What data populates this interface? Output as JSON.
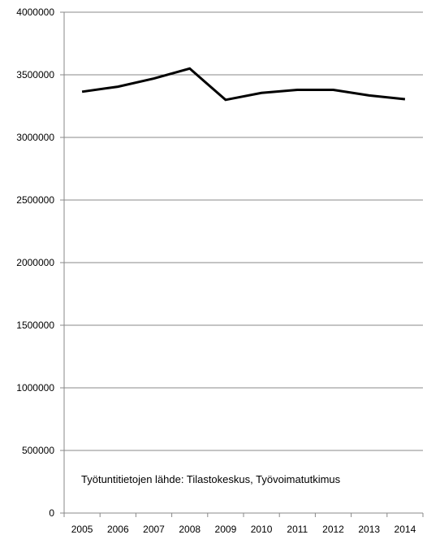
{
  "chart_data": {
    "type": "line",
    "title": "",
    "xlabel": "",
    "ylabel": "",
    "categories": [
      "2005",
      "2006",
      "2007",
      "2008",
      "2009",
      "2010",
      "2011",
      "2012",
      "2013",
      "2014"
    ],
    "series": [
      {
        "values": [
          3365000,
          3405000,
          3470000,
          3550000,
          3300000,
          3355000,
          3380000,
          3380000,
          3335000,
          3305000
        ]
      }
    ],
    "ylim": [
      0,
      4000000
    ],
    "yticks": [
      0,
      500000,
      1000000,
      1500000,
      2000000,
      2500000,
      3000000,
      3500000,
      4000000
    ],
    "ytick_labels": [
      "0",
      "500000",
      "1000000",
      "1500000",
      "2000000",
      "2500000",
      "3000000",
      "3500000",
      "4000000"
    ],
    "grid": "horizontal",
    "legend": "none",
    "annotation": "Työtuntitietojen lähde: Tilastokeskus, Työvoimatutkimus",
    "colors": {
      "line": "#000000",
      "grid": "#888888",
      "axis": "#888888"
    }
  }
}
